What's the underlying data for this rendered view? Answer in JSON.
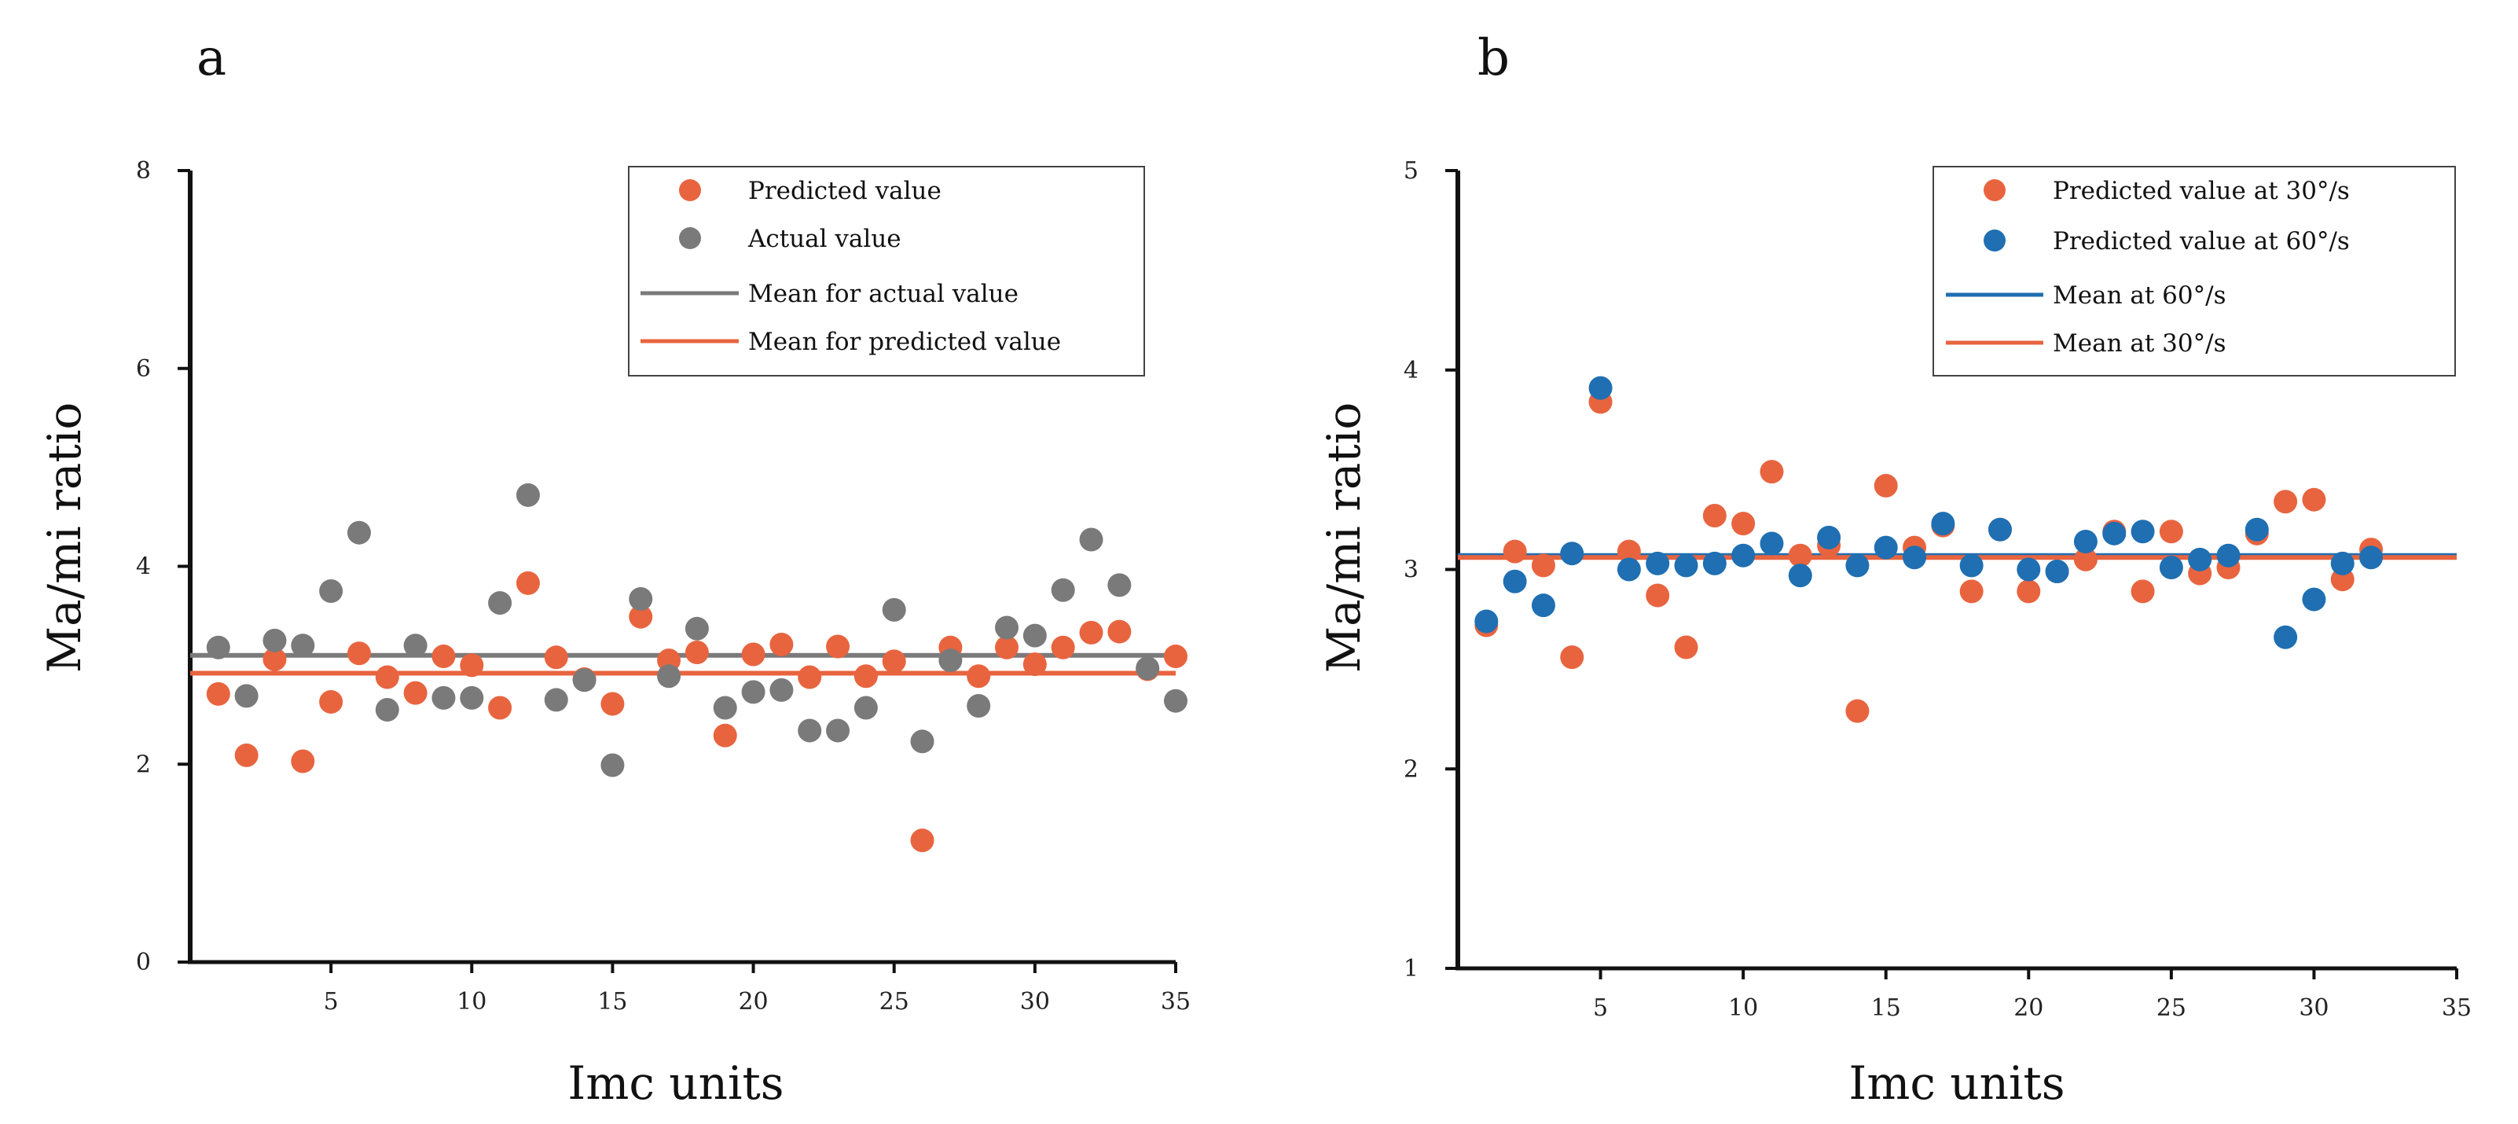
{
  "chart_data": [
    {
      "type": "scatter",
      "panel_label": "a",
      "xlabel": "Imc units",
      "ylabel": "Ma/mi ratio",
      "xlim": [
        0,
        35
      ],
      "ylim": [
        0,
        8
      ],
      "xticks": [
        5,
        10,
        15,
        20,
        25,
        30,
        35
      ],
      "yticks": [
        0,
        2,
        4,
        6,
        8
      ],
      "legend_position": "top-right",
      "series": [
        {
          "name": "Predicted value",
          "color": "#E8643F",
          "x": [
            1,
            2,
            3,
            4,
            5,
            6,
            7,
            8,
            9,
            10,
            11,
            12,
            13,
            14,
            15,
            16,
            17,
            18,
            19,
            20,
            21,
            22,
            23,
            24,
            25,
            26,
            27,
            28,
            29,
            30,
            31,
            32,
            33,
            34,
            35
          ],
          "values": [
            2.71,
            2.09,
            3.06,
            2.03,
            2.63,
            3.12,
            2.88,
            2.72,
            3.09,
            3.0,
            2.57,
            3.83,
            3.08,
            2.86,
            2.61,
            3.49,
            3.05,
            3.13,
            2.29,
            3.11,
            3.21,
            2.88,
            3.19,
            2.89,
            3.04,
            1.23,
            3.18,
            2.89,
            3.18,
            3.01,
            3.18,
            3.33,
            3.34,
            2.96,
            3.09
          ]
        },
        {
          "name": "Actual value",
          "color": "#7A7A7A",
          "x": [
            1,
            2,
            3,
            4,
            5,
            6,
            7,
            8,
            9,
            10,
            11,
            12,
            13,
            14,
            15,
            16,
            17,
            18,
            19,
            20,
            21,
            22,
            23,
            24,
            25,
            26,
            27,
            28,
            29,
            30,
            31,
            32,
            33,
            34,
            35
          ],
          "values": [
            3.18,
            2.69,
            3.25,
            3.2,
            3.75,
            4.34,
            2.55,
            3.2,
            2.67,
            2.67,
            3.63,
            4.72,
            2.65,
            2.85,
            1.99,
            3.67,
            2.89,
            3.37,
            2.57,
            2.73,
            2.75,
            2.34,
            2.34,
            2.57,
            3.56,
            2.23,
            3.05,
            2.59,
            3.38,
            3.3,
            3.76,
            4.27,
            3.81,
            2.97,
            2.64
          ]
        }
      ],
      "mean_lines": [
        {
          "name": "Mean for actual value",
          "color": "#7A7A7A",
          "value": 3.1
        },
        {
          "name": "Mean for predicted value",
          "color": "#E8643F",
          "value": 2.92
        }
      ]
    },
    {
      "type": "scatter",
      "panel_label": "b",
      "xlabel": "Imc units",
      "ylabel": "Ma/mi ratio",
      "xlim": [
        0,
        35
      ],
      "ylim": [
        1,
        5
      ],
      "xticks": [
        5,
        10,
        15,
        20,
        25,
        30,
        35
      ],
      "yticks": [
        1,
        2,
        3,
        4,
        5
      ],
      "legend_position": "top-right",
      "series": [
        {
          "name": "Predicted value at 30°/s",
          "color": "#E8643F",
          "x": [
            1,
            2,
            3,
            4,
            5,
            6,
            7,
            8,
            9,
            10,
            11,
            12,
            13,
            14,
            15,
            16,
            17,
            18,
            19,
            20,
            21,
            22,
            23,
            24,
            25,
            26,
            27,
            28,
            29,
            30,
            31,
            32
          ],
          "values": [
            2.72,
            3.09,
            3.02,
            2.56,
            3.84,
            3.09,
            2.87,
            2.61,
            3.27,
            3.23,
            3.49,
            3.07,
            3.12,
            2.29,
            3.42,
            3.11,
            3.22,
            2.89,
            3.2,
            2.89,
            2.99,
            3.05,
            3.19,
            2.89,
            3.19,
            2.98,
            3.01,
            3.18,
            3.34,
            3.35,
            2.95,
            3.1
          ]
        },
        {
          "name": "Predicted value at 60°/s",
          "color": "#1F6FB2",
          "x": [
            1,
            2,
            3,
            4,
            5,
            6,
            7,
            8,
            9,
            10,
            11,
            12,
            13,
            14,
            15,
            16,
            17,
            18,
            19,
            20,
            21,
            22,
            23,
            24,
            25,
            26,
            27,
            28,
            29,
            30,
            31,
            32
          ],
          "values": [
            2.74,
            2.94,
            2.82,
            3.08,
            3.91,
            3.0,
            3.03,
            3.02,
            3.03,
            3.07,
            3.13,
            2.97,
            3.16,
            3.02,
            3.11,
            3.06,
            3.23,
            3.02,
            3.2,
            3.0,
            2.99,
            3.14,
            3.18,
            3.19,
            3.01,
            3.05,
            3.07,
            3.2,
            2.66,
            2.85,
            3.03,
            3.06
          ]
        }
      ],
      "mean_lines": [
        {
          "name": "Mean at 60°/s",
          "color": "#1F6FB2",
          "value": 3.07
        },
        {
          "name": "Mean at 30°/s",
          "color": "#E8643F",
          "value": 3.06
        }
      ]
    }
  ]
}
